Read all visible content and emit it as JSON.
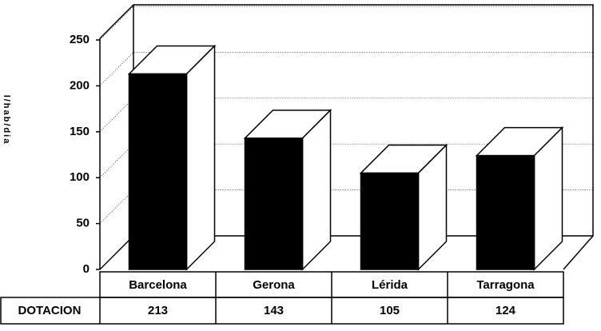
{
  "chart_data": {
    "type": "bar",
    "y_label": "l/hab/dia",
    "categories": [
      "Barcelona",
      "Gerona",
      "Lérida",
      "Tarragona"
    ],
    "series": [
      {
        "name": "DOTACION",
        "color": "#000000",
        "values": [
          213,
          143,
          105,
          124
        ]
      }
    ],
    "ylim": [
      0,
      250
    ],
    "yticks": [
      0,
      50,
      100,
      150,
      200,
      250
    ],
    "grid": true
  }
}
